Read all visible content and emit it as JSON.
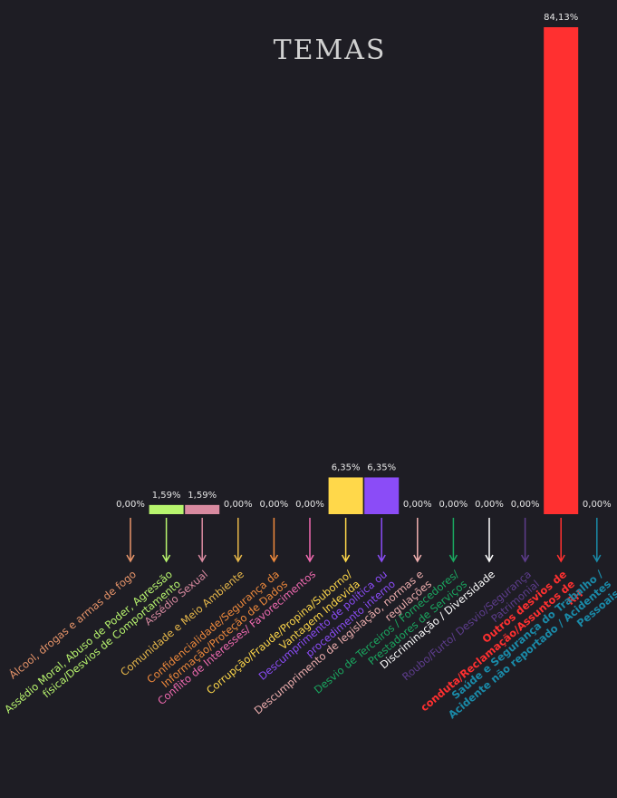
{
  "chart_data": {
    "type": "bar",
    "title": "TEMAS",
    "categories": [
      "Álcool, drogas e armas de fogo",
      "Assédio Moral, Abuso de Poder, Agressão física/Desvios de Comportamento",
      "Assédio Sexual",
      "Comunidade e Meio Ambiente",
      "Confidencialidade/Segurança da Informação/Proteção de Dados",
      "Conflito de Interesses/ Favorecimentos",
      "Corrupção/Fraude/Propina/Suborno/ Vantagem Indevida",
      "Descumprimento de política ou procedimento interno",
      "Descumprimento de legislação, normas e regulações",
      "Desvio de Terceiros / Fornecedores/ Prestadores de Serviços",
      "Discriminação / Diversidade",
      "Roubo/Furto/ Desvio/Segurança Patrimonial",
      "Outros desvios de conduta/Reclamação/Assuntos de RH",
      "Saúde e Segurança do Trabalho / Acidente não reportado / Acidentes Pessoais"
    ],
    "values": [
      0,
      1.59,
      1.59,
      0,
      0,
      0,
      6.35,
      6.35,
      0,
      0,
      0,
      0,
      84.13,
      0
    ],
    "value_labels": [
      "0,00%",
      "1,59%",
      "1,59%",
      "0,00%",
      "0,00%",
      "0,00%",
      "6,35%",
      "6,35%",
      "0,00%",
      "0,00%",
      "0,00%",
      "0,00%",
      "84,13%",
      "0,00%"
    ],
    "colors": [
      "#e8956a",
      "#b8f56e",
      "#d98aa0",
      "#e8b84a",
      "#f08a3c",
      "#f06ab0",
      "#ffd84a",
      "#8b4cf7",
      "#f0b0b0",
      "#1aa860",
      "#ffffff",
      "#5e3d8e",
      "#ff3030",
      "#1a8aa8"
    ]
  }
}
